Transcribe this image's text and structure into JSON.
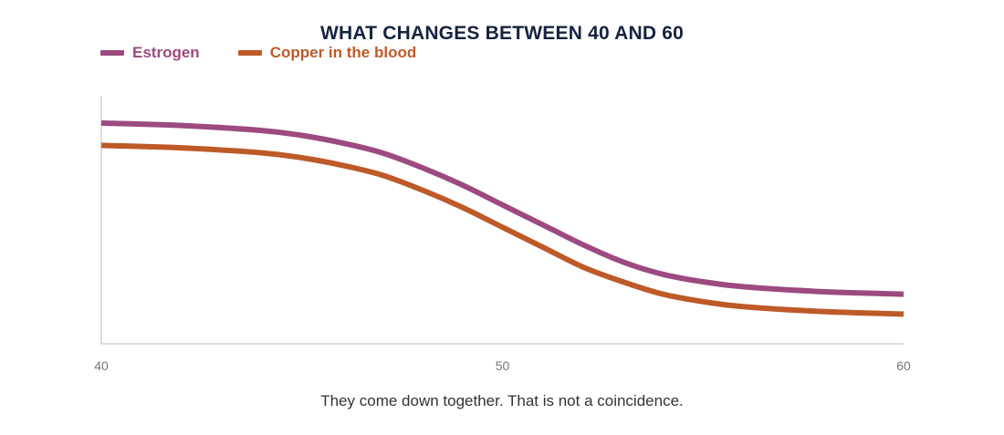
{
  "colors": {
    "estrogen": "#9c4a80",
    "copper": "#bd5a28",
    "title": "#15233f",
    "axis": "#dddddd",
    "tick_text": "#777777"
  },
  "chart_data": {
    "type": "line",
    "title": "WHAT CHANGES BETWEEN 40 AND 60",
    "caption": "They come down together. That is not a coincidence.",
    "xlabel": "",
    "ylabel": "",
    "xlim": [
      40,
      60
    ],
    "ylim": [
      0,
      100
    ],
    "x_ticks": [
      "40",
      "50",
      "60"
    ],
    "grid": false,
    "legend_position": "top-left",
    "y_axis_labels_shown": false,
    "series": [
      {
        "name": "Estrogen",
        "color": "#9c4a80",
        "x": [
          40,
          42,
          44,
          45,
          46,
          47,
          48,
          49,
          50,
          51,
          52,
          53,
          54,
          55,
          56,
          58,
          60
        ],
        "y": [
          89,
          88,
          86,
          84,
          81,
          77,
          71,
          64,
          56,
          48,
          40,
          33,
          28,
          25,
          23,
          21,
          20
        ]
      },
      {
        "name": "Copper in the blood",
        "color": "#bd5a28",
        "x": [
          40,
          42,
          44,
          45,
          46,
          47,
          48,
          49,
          50,
          51,
          52,
          53,
          54,
          55,
          56,
          58,
          60
        ],
        "y": [
          80,
          79,
          77,
          75,
          72,
          68,
          62,
          55,
          47,
          39,
          31,
          25,
          20,
          17,
          15,
          13,
          12
        ]
      }
    ]
  }
}
